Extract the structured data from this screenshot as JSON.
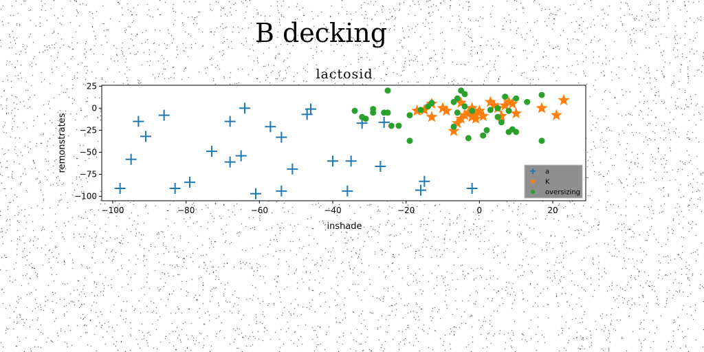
{
  "suptitle": "B decking",
  "chart_data": {
    "type": "scatter",
    "title": "lactosid",
    "xlabel": "inshade",
    "ylabel": "remonstrates",
    "xlim": [
      -103,
      29
    ],
    "ylim": [
      -105,
      26
    ],
    "xticks": [
      -100,
      -80,
      -60,
      -40,
      -20,
      0,
      20
    ],
    "yticks": [
      25,
      0,
      -25,
      -50,
      -75,
      -100
    ],
    "xtick_labels": [
      "−100",
      "−80",
      "−60",
      "−40",
      "−20",
      "0",
      "20"
    ],
    "ytick_labels": [
      "25",
      "0",
      "−25",
      "−50",
      "−75",
      "−100"
    ],
    "grid": false,
    "legend_position": "lower-right",
    "series": [
      {
        "name": "a",
        "marker": "plus",
        "color": "#1f77b4",
        "points": [
          [
            -98,
            -91
          ],
          [
            -95,
            -58
          ],
          [
            -93,
            -15
          ],
          [
            -91,
            -32
          ],
          [
            -86,
            -8
          ],
          [
            -83,
            -91
          ],
          [
            -79,
            -84
          ],
          [
            -73,
            -49
          ],
          [
            -68,
            -61
          ],
          [
            -68,
            -15
          ],
          [
            -65,
            -54
          ],
          [
            -64,
            0
          ],
          [
            -61,
            -97
          ],
          [
            -57,
            -21
          ],
          [
            -54,
            -33
          ],
          [
            -54,
            -94
          ],
          [
            -51,
            -69
          ],
          [
            -47,
            -7
          ],
          [
            -46,
            -1
          ],
          [
            -40,
            -60
          ],
          [
            -35,
            -60
          ],
          [
            -36,
            -94
          ],
          [
            -32,
            -17
          ],
          [
            -27,
            -66
          ],
          [
            -26,
            -16
          ],
          [
            -16,
            -93
          ],
          [
            -15,
            -83
          ],
          [
            -2,
            -91
          ]
        ]
      },
      {
        "name": "K",
        "marker": "star",
        "color": "#ff7f0e",
        "points": [
          [
            -17,
            -3
          ],
          [
            -15,
            -2
          ],
          [
            -13,
            5
          ],
          [
            -13,
            -10
          ],
          [
            -10,
            0
          ],
          [
            -9,
            -3
          ],
          [
            -7,
            -26
          ],
          [
            -6,
            -17
          ],
          [
            -5,
            6
          ],
          [
            -5,
            -12
          ],
          [
            -4,
            -8
          ],
          [
            -3,
            -5
          ],
          [
            -2,
            0
          ],
          [
            -2,
            -10
          ],
          [
            -1,
            -12
          ],
          [
            -1,
            -7
          ],
          [
            0,
            -3
          ],
          [
            1,
            -9
          ],
          [
            3,
            7
          ],
          [
            4,
            3
          ],
          [
            5,
            0
          ],
          [
            6,
            -9
          ],
          [
            7,
            3
          ],
          [
            8,
            7
          ],
          [
            9,
            5
          ],
          [
            10,
            -6
          ],
          [
            17,
            0
          ],
          [
            21,
            -8
          ],
          [
            23,
            9
          ]
        ]
      },
      {
        "name": "oversizing",
        "marker": "circle",
        "color": "#2ca02c",
        "points": [
          [
            -34,
            -3
          ],
          [
            -32,
            -10
          ],
          [
            -31,
            -12
          ],
          [
            -29,
            -5
          ],
          [
            -29,
            -1
          ],
          [
            -26,
            -5
          ],
          [
            -25,
            20
          ],
          [
            -25,
            -5
          ],
          [
            -24,
            -20
          ],
          [
            -22,
            -20
          ],
          [
            -19,
            -8
          ],
          [
            -19,
            -37
          ],
          [
            -16,
            -2
          ],
          [
            -14,
            2
          ],
          [
            -13,
            6
          ],
          [
            -7,
            -21
          ],
          [
            -7,
            7
          ],
          [
            -6,
            11
          ],
          [
            -6,
            -5
          ],
          [
            -5,
            20
          ],
          [
            -4,
            2
          ],
          [
            -4,
            16
          ],
          [
            -3,
            -34
          ],
          [
            -2,
            -3
          ],
          [
            1,
            -31
          ],
          [
            2,
            -25
          ],
          [
            3,
            -2
          ],
          [
            5,
            -10
          ],
          [
            5,
            0
          ],
          [
            6,
            -16
          ],
          [
            7,
            13
          ],
          [
            8,
            -3
          ],
          [
            8,
            -27
          ],
          [
            9,
            -24
          ],
          [
            10,
            -27
          ],
          [
            10,
            11
          ],
          [
            13,
            7
          ],
          [
            17,
            15
          ],
          [
            17,
            -37
          ]
        ]
      }
    ]
  }
}
